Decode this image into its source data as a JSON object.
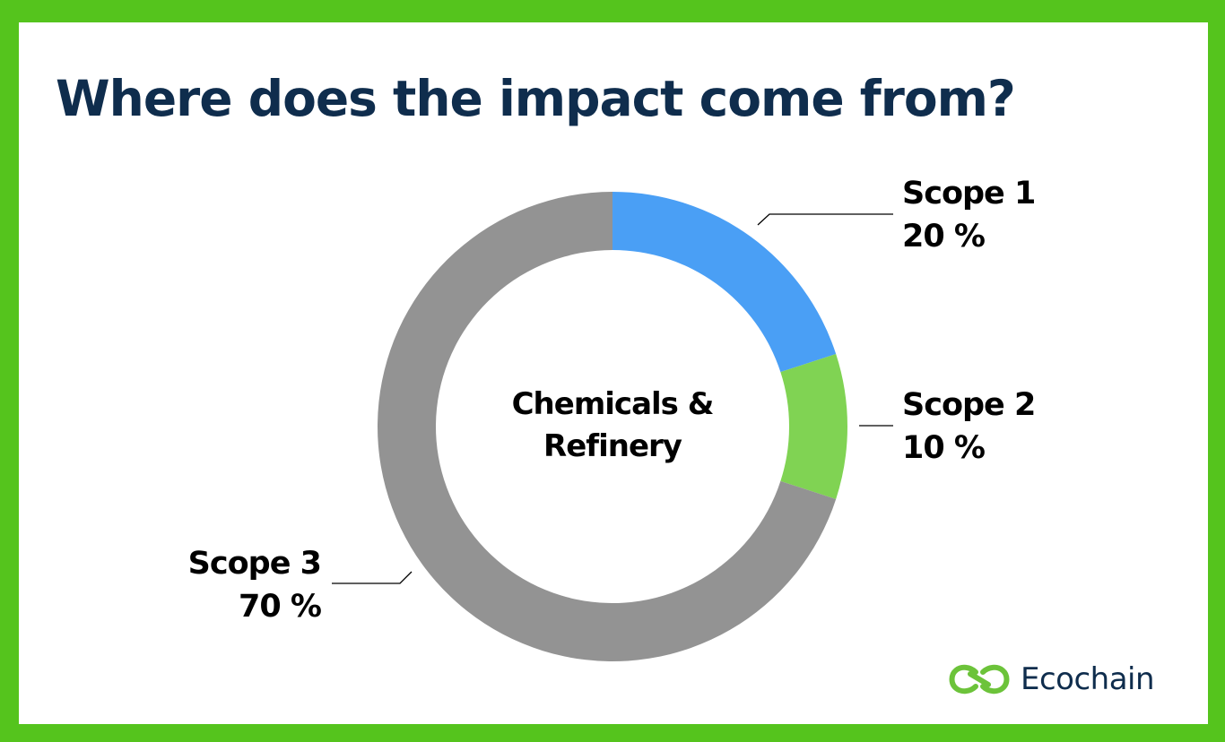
{
  "title": "Where does the impact come from?",
  "center_label": {
    "line1": "Chemicals &",
    "line2": "Refinery"
  },
  "labels": [
    {
      "name": "Scope 1",
      "value": "20 %"
    },
    {
      "name": "Scope 2",
      "value": "10 %"
    },
    {
      "name": "Scope 3",
      "value": "70 %"
    }
  ],
  "brand": {
    "name": "Ecochain",
    "icon": "infinity-chain-logo-icon"
  },
  "colors": {
    "border": "#55c41d",
    "title": "#0f2d4d",
    "scope1": "#4a9ff5",
    "scope2": "#80d353",
    "scope3": "#939393",
    "logo_green": "#6cc33a"
  },
  "chart_data": {
    "type": "pie",
    "subtype": "donut",
    "title": "Where does the impact come from?",
    "center_text": "Chemicals & Refinery",
    "categories": [
      "Scope 1",
      "Scope 2",
      "Scope 3"
    ],
    "values": [
      20,
      10,
      70
    ],
    "unit": "%",
    "colors": [
      "#4a9ff5",
      "#80d353",
      "#939393"
    ],
    "start_angle": "12 o'clock, clockwise",
    "legend": "callout labels with leader lines"
  }
}
